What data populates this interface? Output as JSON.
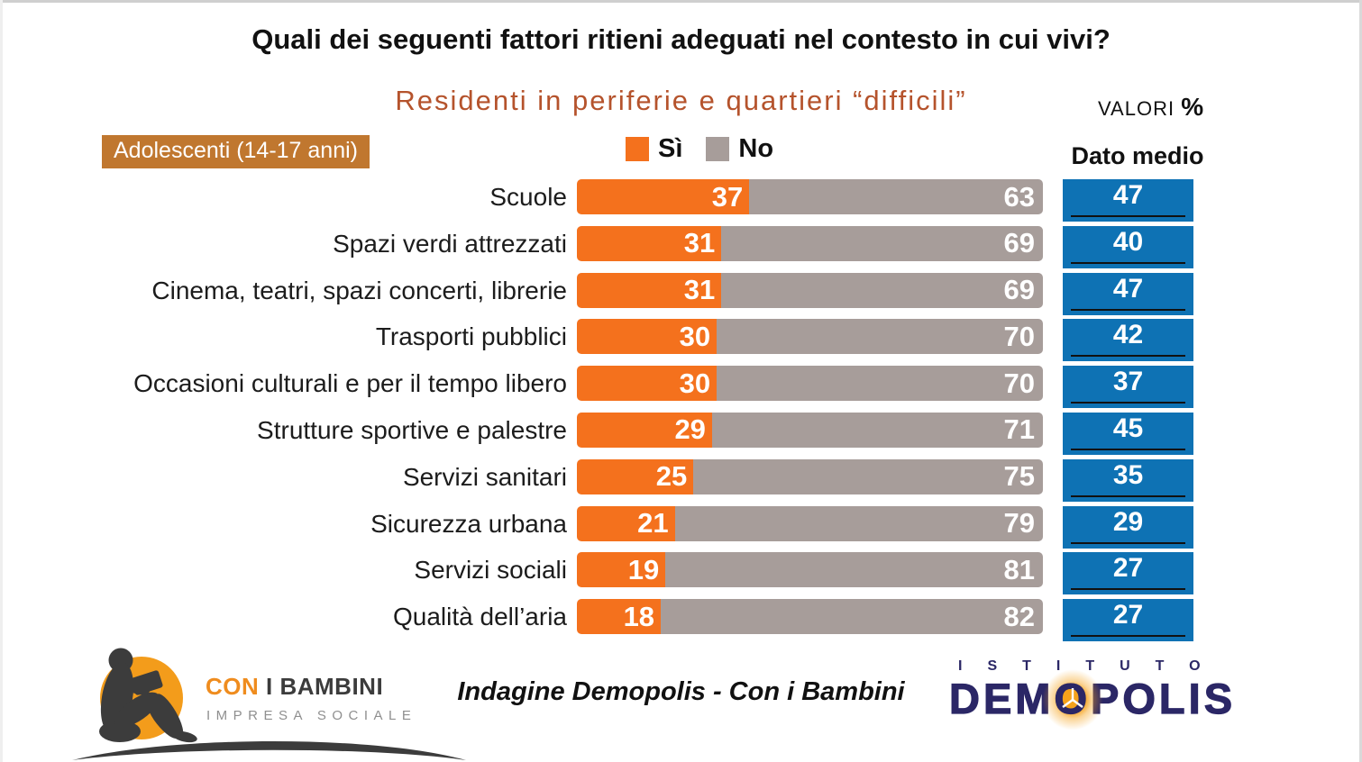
{
  "header": {
    "title": "Quali dei seguenti fattori ritieni adeguati nel contesto in cui vivi?",
    "subtitle": "Residenti in periferie e quartieri “difficili”",
    "valori_label": "VALORI",
    "valori_pct": "%",
    "audience_badge": "Adolescenti (14-17 anni)"
  },
  "legend": {
    "si_label": "Sì",
    "no_label": "No"
  },
  "chart_data": {
    "type": "bar",
    "orientation": "horizontal",
    "stacked": true,
    "title": "Quali dei seguenti fattori ritieni adeguati nel contesto in cui vivi?",
    "subtitle": "Residenti in periferie e quartieri “difficili”",
    "unit": "VALORI %",
    "xlim": [
      0,
      100
    ],
    "legend_position": "top",
    "value_labels": "inside",
    "categories": [
      "Scuole",
      "Spazi verdi attrezzati",
      "Cinema, teatri, spazi concerti, librerie",
      "Trasporti pubblici",
      "Occasioni culturali e per il tempo libero",
      "Strutture sportive e palestre",
      "Servizi sanitari",
      "Sicurezza urbana",
      "Servizi sociali",
      "Qualità dell’aria"
    ],
    "series": [
      {
        "name": "Sì",
        "color": "#F4711D",
        "values": [
          37,
          31,
          31,
          30,
          30,
          29,
          25,
          21,
          19,
          18
        ]
      },
      {
        "name": "No",
        "color": "#A79D9A",
        "values": [
          63,
          69,
          69,
          70,
          70,
          71,
          75,
          79,
          81,
          82
        ]
      }
    ],
    "dato_medio": {
      "label": "Dato medio",
      "color": "#0E72B4",
      "values": [
        47,
        40,
        47,
        42,
        37,
        45,
        35,
        29,
        27,
        27
      ]
    }
  },
  "footer": {
    "con_i_bambini": {
      "word1": "CON",
      "word2": " I BAMBINI",
      "tagline": "IMPRESA SOCIALE"
    },
    "caption": "Indagine Demopolis - Con i Bambini",
    "demopolis": {
      "istituto": "ISTITUTO",
      "dem": "DEM",
      "o": "O",
      "polis": "POLIS"
    }
  },
  "colors": {
    "si_color": "#F4711D",
    "no_color": "#A79D9A",
    "dato_color": "#0E72B4",
    "badge_bg": "#C0772F",
    "subtitle": "#B5532C",
    "navy": "#2B2766",
    "logo_orange": "#F39C1B",
    "cib_orange": "#EF8C1E",
    "ground_dark": "#3C3C3C",
    "tagline_gray": "#8F8F8F"
  }
}
